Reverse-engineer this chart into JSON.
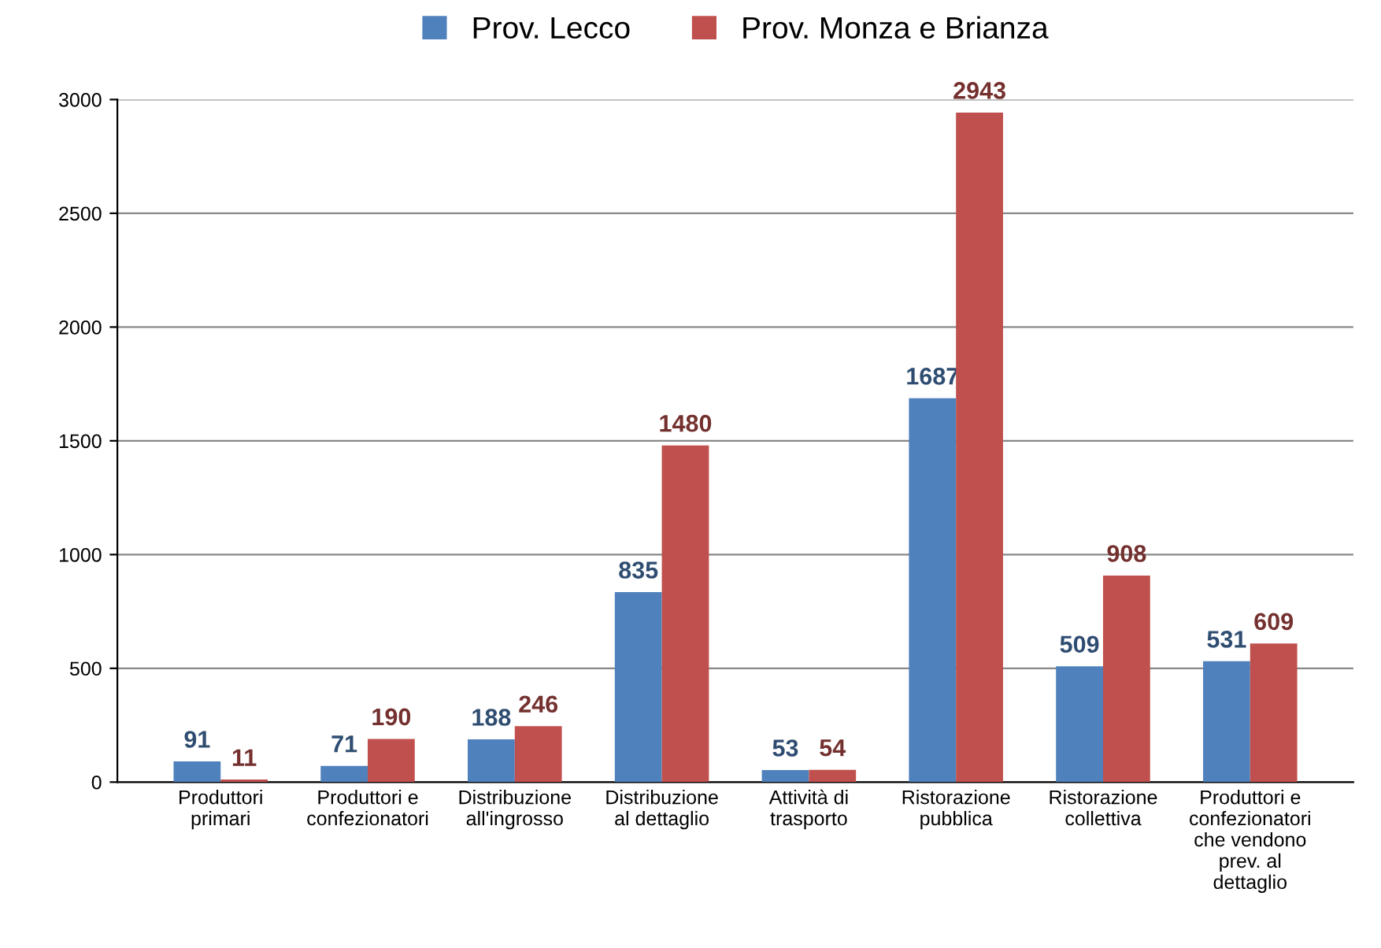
{
  "chart_data": {
    "type": "bar",
    "categories": [
      "Produttori\nprimari",
      "Produttori e\nconfezionatori",
      "Distribuzione\nall'ingrosso",
      "Distribuzione\nal dettaglio",
      "Attività di\ntrasporto",
      "Ristorazione\npubblica",
      "Ristorazione\ncollettiva",
      "Produttori e\nconfezionatori\nche vendono\nprev. al\ndettaglio"
    ],
    "series": [
      {
        "name": "Prov. Lecco",
        "color": "#4f81bd",
        "values": [
          91,
          71,
          188,
          835,
          53,
          1687,
          509,
          531
        ]
      },
      {
        "name": "Prov. Monza e Brianza",
        "color": "#c0504d",
        "values": [
          11,
          190,
          246,
          1480,
          54,
          2943,
          908,
          609
        ]
      }
    ],
    "ylim": [
      0,
      3000
    ],
    "yticks": [
      0,
      500,
      1000,
      1500,
      2000,
      2500,
      3000
    ],
    "grid": "y",
    "legend": "top",
    "data_labels": true
  }
}
